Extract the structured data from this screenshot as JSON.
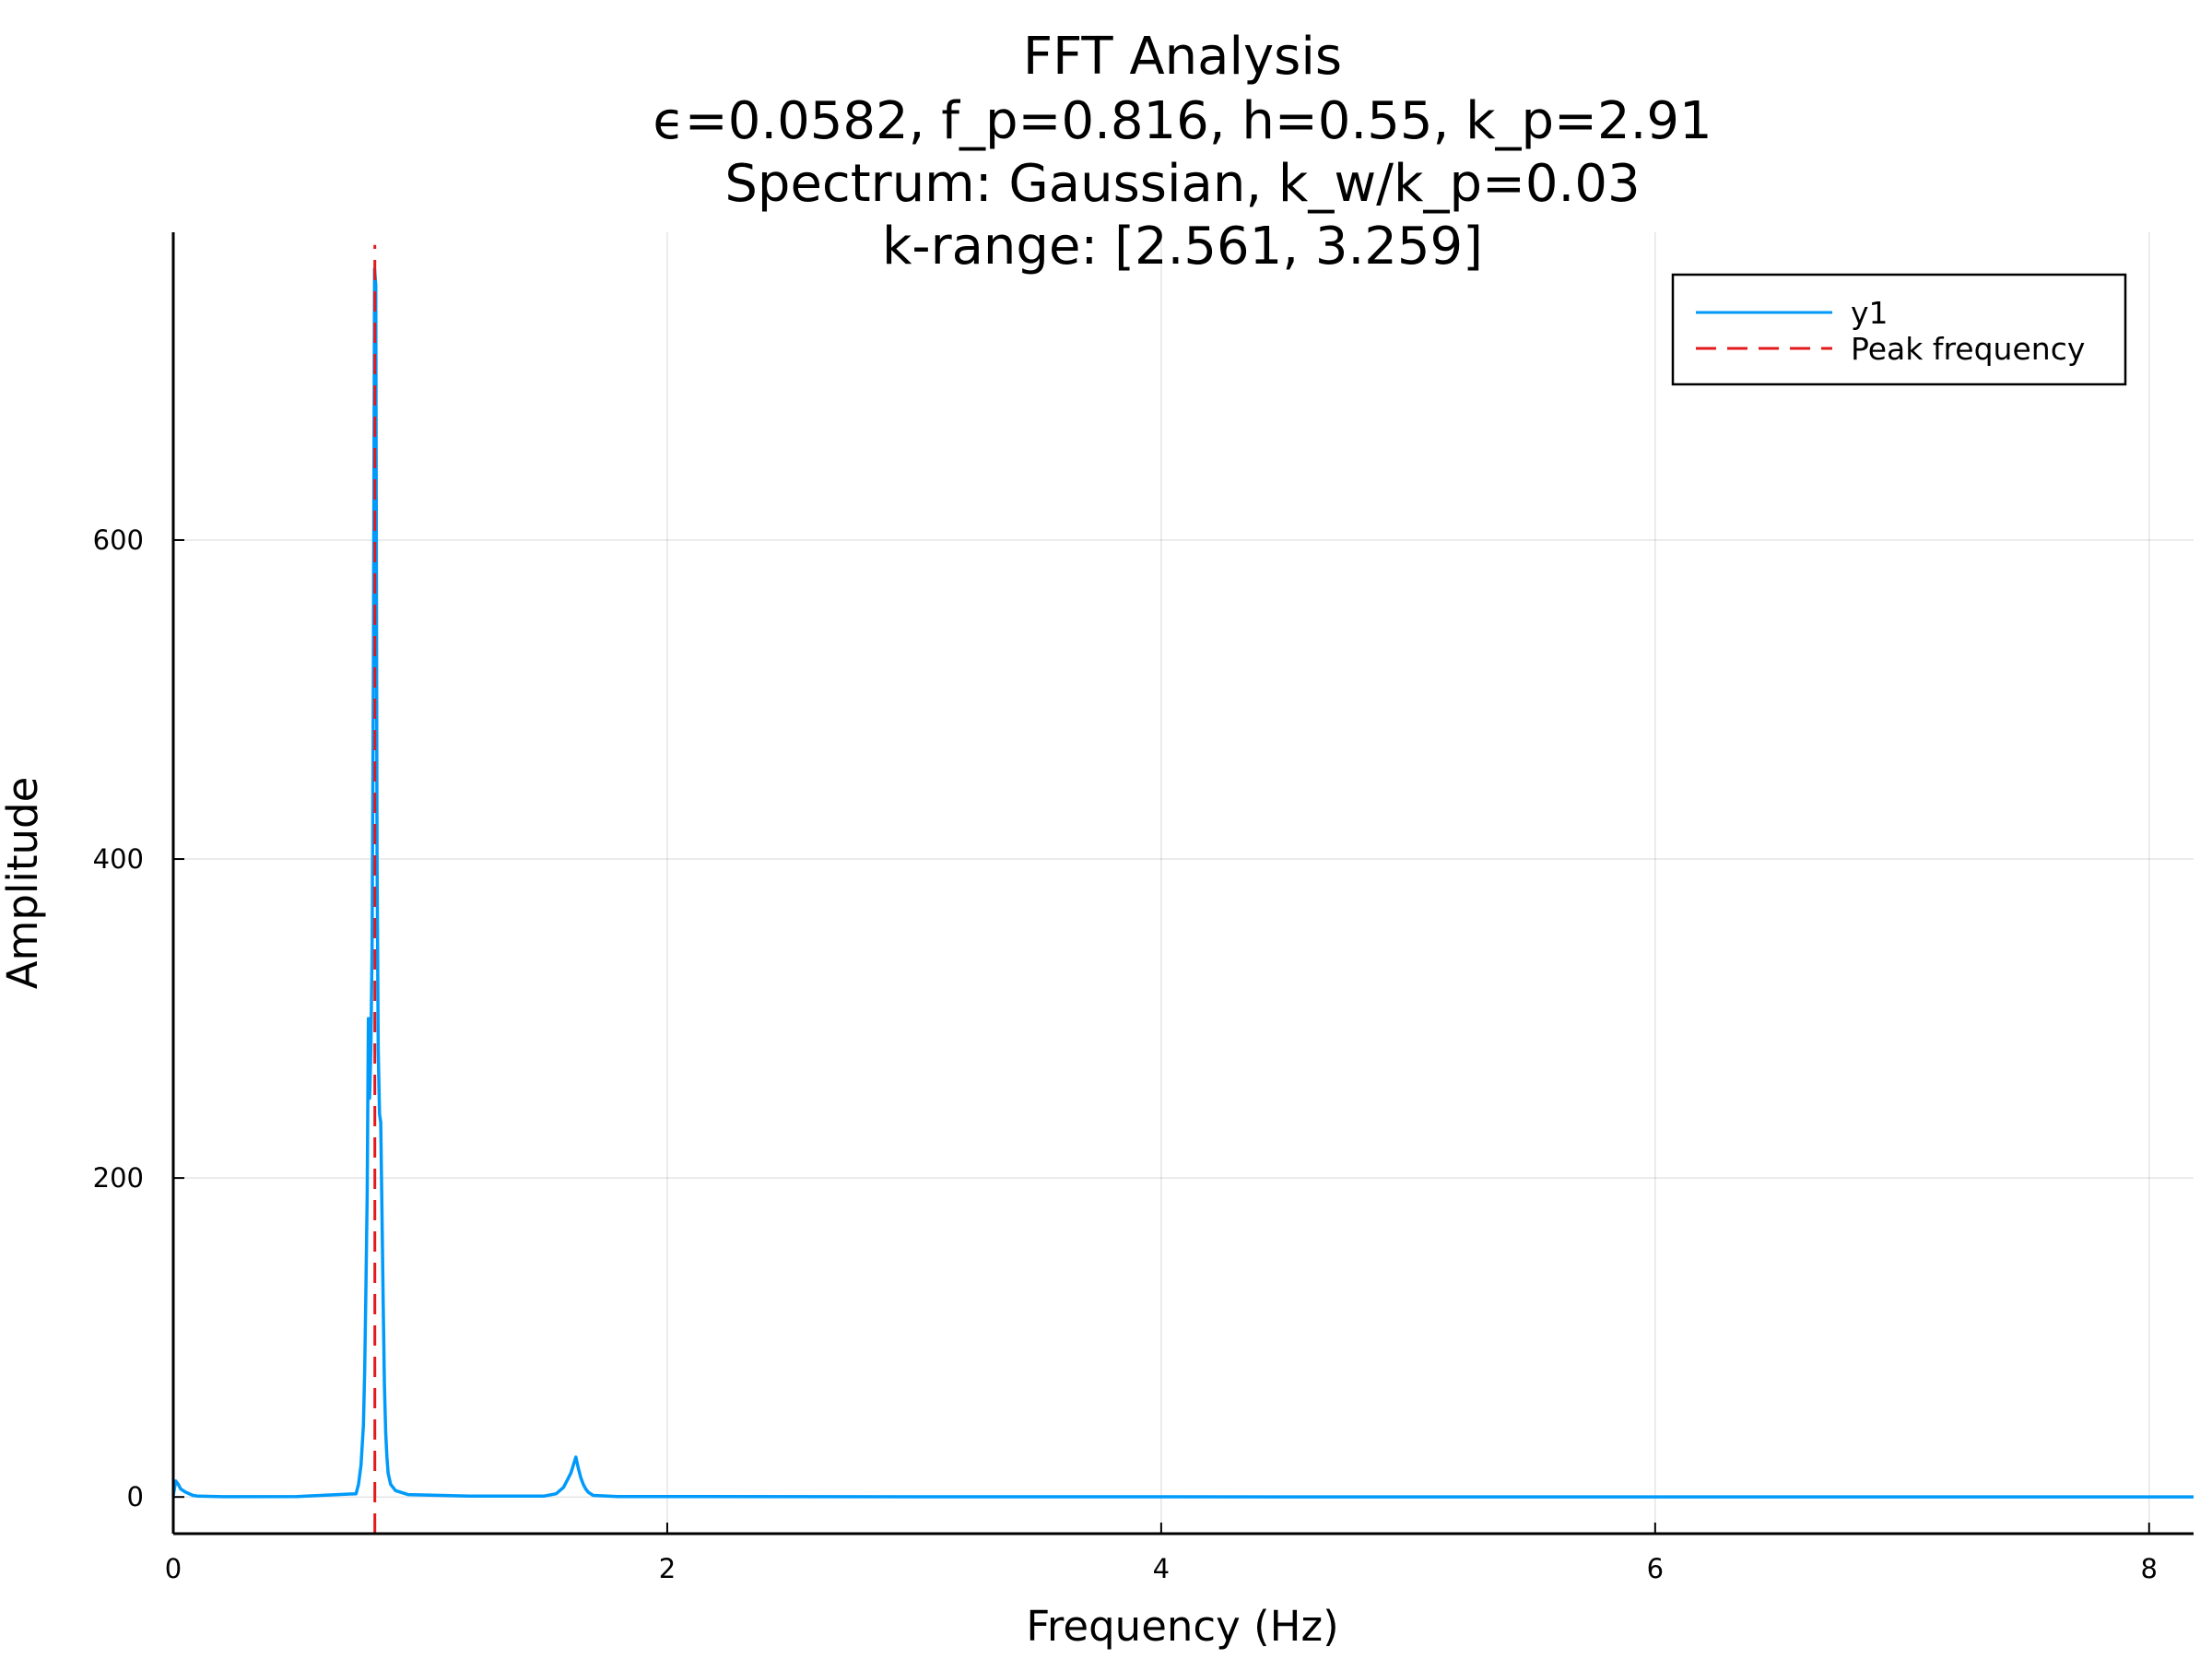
{
  "chart_data": {
    "type": "line",
    "title_lines": [
      "FFT Analysis",
      "ϵ=0.0582, f_p=0.816, h=0.55, k_p=2.91",
      "Spectrum: Gaussian, k_w/k_p=0.03",
      "k-range: [2.561, 3.259]"
    ],
    "xlabel": "Frequency (Hz)",
    "ylabel": "Amplitude",
    "xlim": [
      0,
      8.18
    ],
    "ylim": [
      -23,
      793
    ],
    "xticks": [
      0,
      2,
      4,
      6,
      8
    ],
    "xtick_labels": [
      "0",
      "2",
      "4",
      "6",
      "8"
    ],
    "yticks": [
      0,
      200,
      400,
      600
    ],
    "ytick_labels": [
      "0",
      "200",
      "400",
      "600"
    ],
    "grid": true,
    "legend_position": "top-right",
    "series": [
      {
        "name": "y1",
        "color": "#009AFA",
        "x": [
          0.0,
          0.01,
          0.02,
          0.03,
          0.05,
          0.08,
          0.1,
          0.2,
          0.5,
          0.74,
          0.75,
          0.76,
          0.77,
          0.775,
          0.78,
          0.785,
          0.79,
          0.795,
          0.8,
          0.805,
          0.81,
          0.815,
          0.82,
          0.825,
          0.83,
          0.835,
          0.84,
          0.845,
          0.85,
          0.855,
          0.86,
          0.865,
          0.87,
          0.88,
          0.9,
          0.95,
          1.2,
          1.5,
          1.55,
          1.58,
          1.6,
          1.61,
          1.62,
          1.63,
          1.64,
          1.65,
          1.66,
          1.67,
          1.68,
          1.7,
          1.8,
          3.0,
          5.0,
          8.18
        ],
        "y": [
          1,
          10,
          8,
          5,
          3,
          1,
          0.5,
          0.2,
          0.3,
          2,
          8,
          20,
          45,
          80,
          130,
          190,
          300,
          250,
          280,
          345,
          515,
          770,
          760,
          400,
          280,
          240,
          235,
          180,
          120,
          70,
          40,
          25,
          15,
          8,
          4,
          1.5,
          0.5,
          0.5,
          2,
          6,
          12,
          15,
          20,
          25,
          18,
          12,
          8,
          5,
          3,
          1,
          0.3,
          0.1,
          0.05,
          0.05
        ]
      },
      {
        "name": "Peak frequency",
        "color": "#E31A1C",
        "style": "dashed",
        "x": [
          0.816,
          0.816
        ],
        "y": [
          -23,
          785
        ]
      }
    ]
  }
}
